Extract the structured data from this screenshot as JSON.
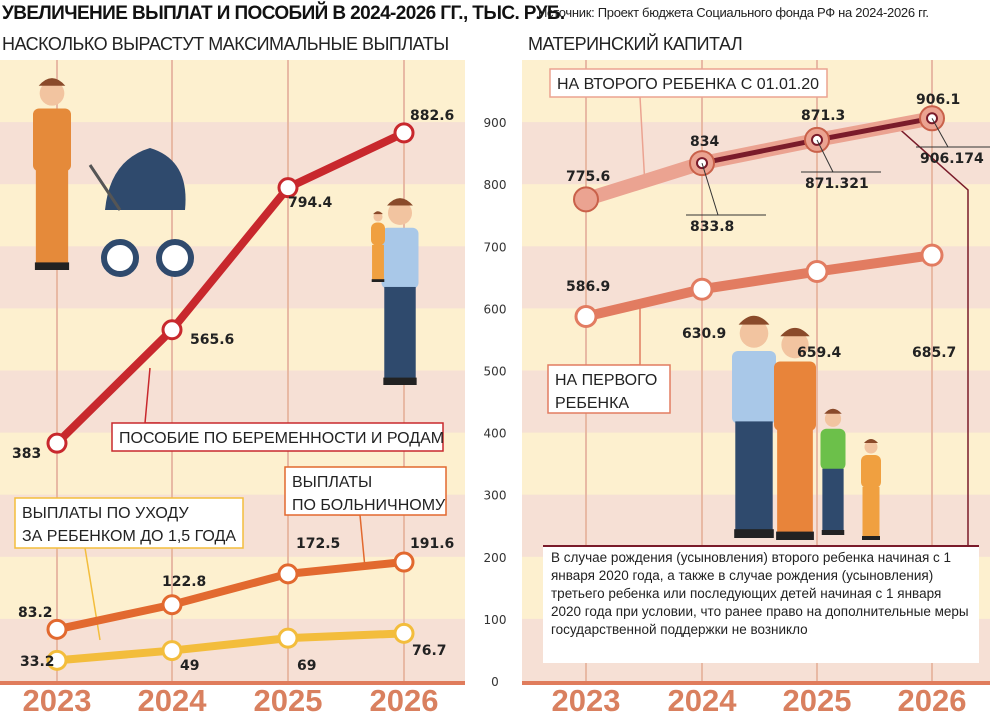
{
  "header": {
    "title": "УВЕЛИЧЕНИЕ ВЫПЛАТ И ПОСОБИЙ В 2024-2026 ГГ., ТЫС. РУБ.",
    "source": "Источник: Проект бюджета Социального фонда РФ на 2024-2026 гг."
  },
  "colors": {
    "band_light": "#fdf0cf",
    "band_dark": "#f6e0d5",
    "maternity": "#c8282d",
    "sick": "#e2692f",
    "childcare": "#f3bd3c",
    "second_child": "#eba391",
    "second_child_inner": "#7a1b2a",
    "first_child": "#e27c61",
    "year": "#d9805f"
  },
  "chart_data": [
    {
      "type": "line",
      "title": "НАСКОЛЬКО ВЫРАСТУТ МАКСИМАЛЬНЫЕ ВЫПЛАТЫ",
      "categories": [
        "2023",
        "2024",
        "2025",
        "2026"
      ],
      "ylim": [
        0,
        1000
      ],
      "series": [
        {
          "name": "ПОСОБИЕ ПО БЕРЕМЕННОСТИ И РОДАМ",
          "values": [
            383,
            565.6,
            794.4,
            882.6
          ],
          "labels": [
            "383",
            "565.6",
            "794.4",
            "882.6"
          ]
        },
        {
          "name": "ВЫПЛАТЫ ПО БОЛЬНИЧНОМУ",
          "values": [
            83.2,
            122.8,
            172.5,
            191.6
          ],
          "labels": [
            "83.2",
            "122.8",
            "172.5",
            "191.6"
          ]
        },
        {
          "name": "ВЫПЛАТЫ ПО УХОДУ ЗА РЕБЕНКОМ ДО 1,5 ГОДА",
          "values": [
            33.2,
            49,
            69,
            76.7
          ],
          "labels": [
            "33.2",
            "49",
            "69",
            "76.7"
          ]
        }
      ],
      "callouts": {
        "maternity": [
          "ПОСОБИЕ ПО БЕРЕМЕННОСТИ И РОДАМ"
        ],
        "sick": [
          "ВЫПЛАТЫ",
          "ПО БОЛЬНИЧНОМУ"
        ],
        "childcare": [
          "ВЫПЛАТЫ ПО УХОДУ",
          "ЗА РЕБЕНКОМ ДО 1,5 ГОДА"
        ]
      }
    },
    {
      "type": "line",
      "title": "МАТЕРИНСКИЙ КАПИТАЛ",
      "categories": [
        "2023",
        "2024",
        "2025",
        "2026"
      ],
      "ylim": [
        0,
        1000
      ],
      "yticks": [
        0,
        100,
        200,
        300,
        400,
        500,
        600,
        700,
        800,
        900
      ],
      "series": [
        {
          "name": "НА ВТОРОГО РЕБЕНКА С 01.01.20",
          "values": [
            775.6,
            834,
            871.3,
            906.1
          ],
          "labels": [
            "775.6",
            "834",
            "871.3",
            "906.1"
          ],
          "exact_values": [
            null,
            833.8,
            871.321,
            906.174
          ],
          "exact_labels": [
            "",
            "833.8",
            "871.321",
            "906.174"
          ]
        },
        {
          "name": "НА ПЕРВОГО РЕБЕНКА",
          "values": [
            586.9,
            630.9,
            659.4,
            685.7
          ],
          "labels": [
            "586.9",
            "630.9",
            "659.4",
            "685.7"
          ]
        }
      ],
      "callouts": {
        "second": [
          "НА ВТОРОГО РЕБЕНКА С 01.01.20"
        ],
        "first": [
          "НА ПЕРВОГО",
          "РЕБЕНКА"
        ]
      },
      "note": "В случае рождения (усыновления) второго ребенка начиная с 1 января 2020 года, а также в случае рождения (усыновления) третьего ребенка или последующих детей начиная с 1 января 2020 года при условии, что ранее право на дополнительные меры государственной поддержки не возникло"
    }
  ]
}
